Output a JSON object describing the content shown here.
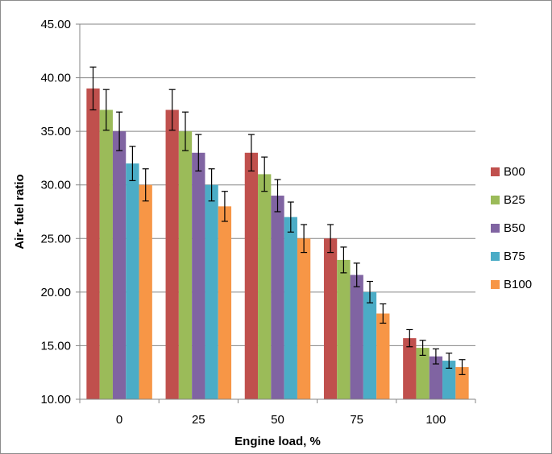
{
  "chart_data": {
    "type": "bar",
    "title": "",
    "xlabel": "Engine load, %",
    "ylabel": "Air- fuel ratio",
    "categories": [
      "0",
      "25",
      "50",
      "75",
      "100"
    ],
    "ylim": [
      10,
      45
    ],
    "yticks": [
      "10.00",
      "15.00",
      "20.00",
      "25.00",
      "30.00",
      "35.00",
      "40.00",
      "45.00"
    ],
    "grid": "horizontal",
    "legend_position": "right",
    "error_bars": true,
    "series": [
      {
        "name": "B00",
        "color": "#c0504d",
        "values": [
          39.0,
          37.0,
          33.0,
          25.0,
          15.7
        ],
        "errors": [
          2.0,
          1.9,
          1.7,
          1.3,
          0.8
        ]
      },
      {
        "name": "B25",
        "color": "#9bbb59",
        "values": [
          37.0,
          35.0,
          31.0,
          23.0,
          14.8
        ],
        "errors": [
          1.9,
          1.8,
          1.6,
          1.2,
          0.7
        ]
      },
      {
        "name": "B50",
        "color": "#8064a2",
        "values": [
          35.0,
          33.0,
          29.0,
          21.6,
          14.0
        ],
        "errors": [
          1.8,
          1.7,
          1.5,
          1.1,
          0.7
        ]
      },
      {
        "name": "B75",
        "color": "#4bacc6",
        "values": [
          32.0,
          30.0,
          27.0,
          20.0,
          13.6
        ],
        "errors": [
          1.6,
          1.5,
          1.4,
          1.0,
          0.7
        ]
      },
      {
        "name": "B100",
        "color": "#f79646",
        "values": [
          30.0,
          28.0,
          25.0,
          18.0,
          13.0
        ],
        "errors": [
          1.5,
          1.4,
          1.3,
          0.9,
          0.7
        ]
      }
    ]
  }
}
